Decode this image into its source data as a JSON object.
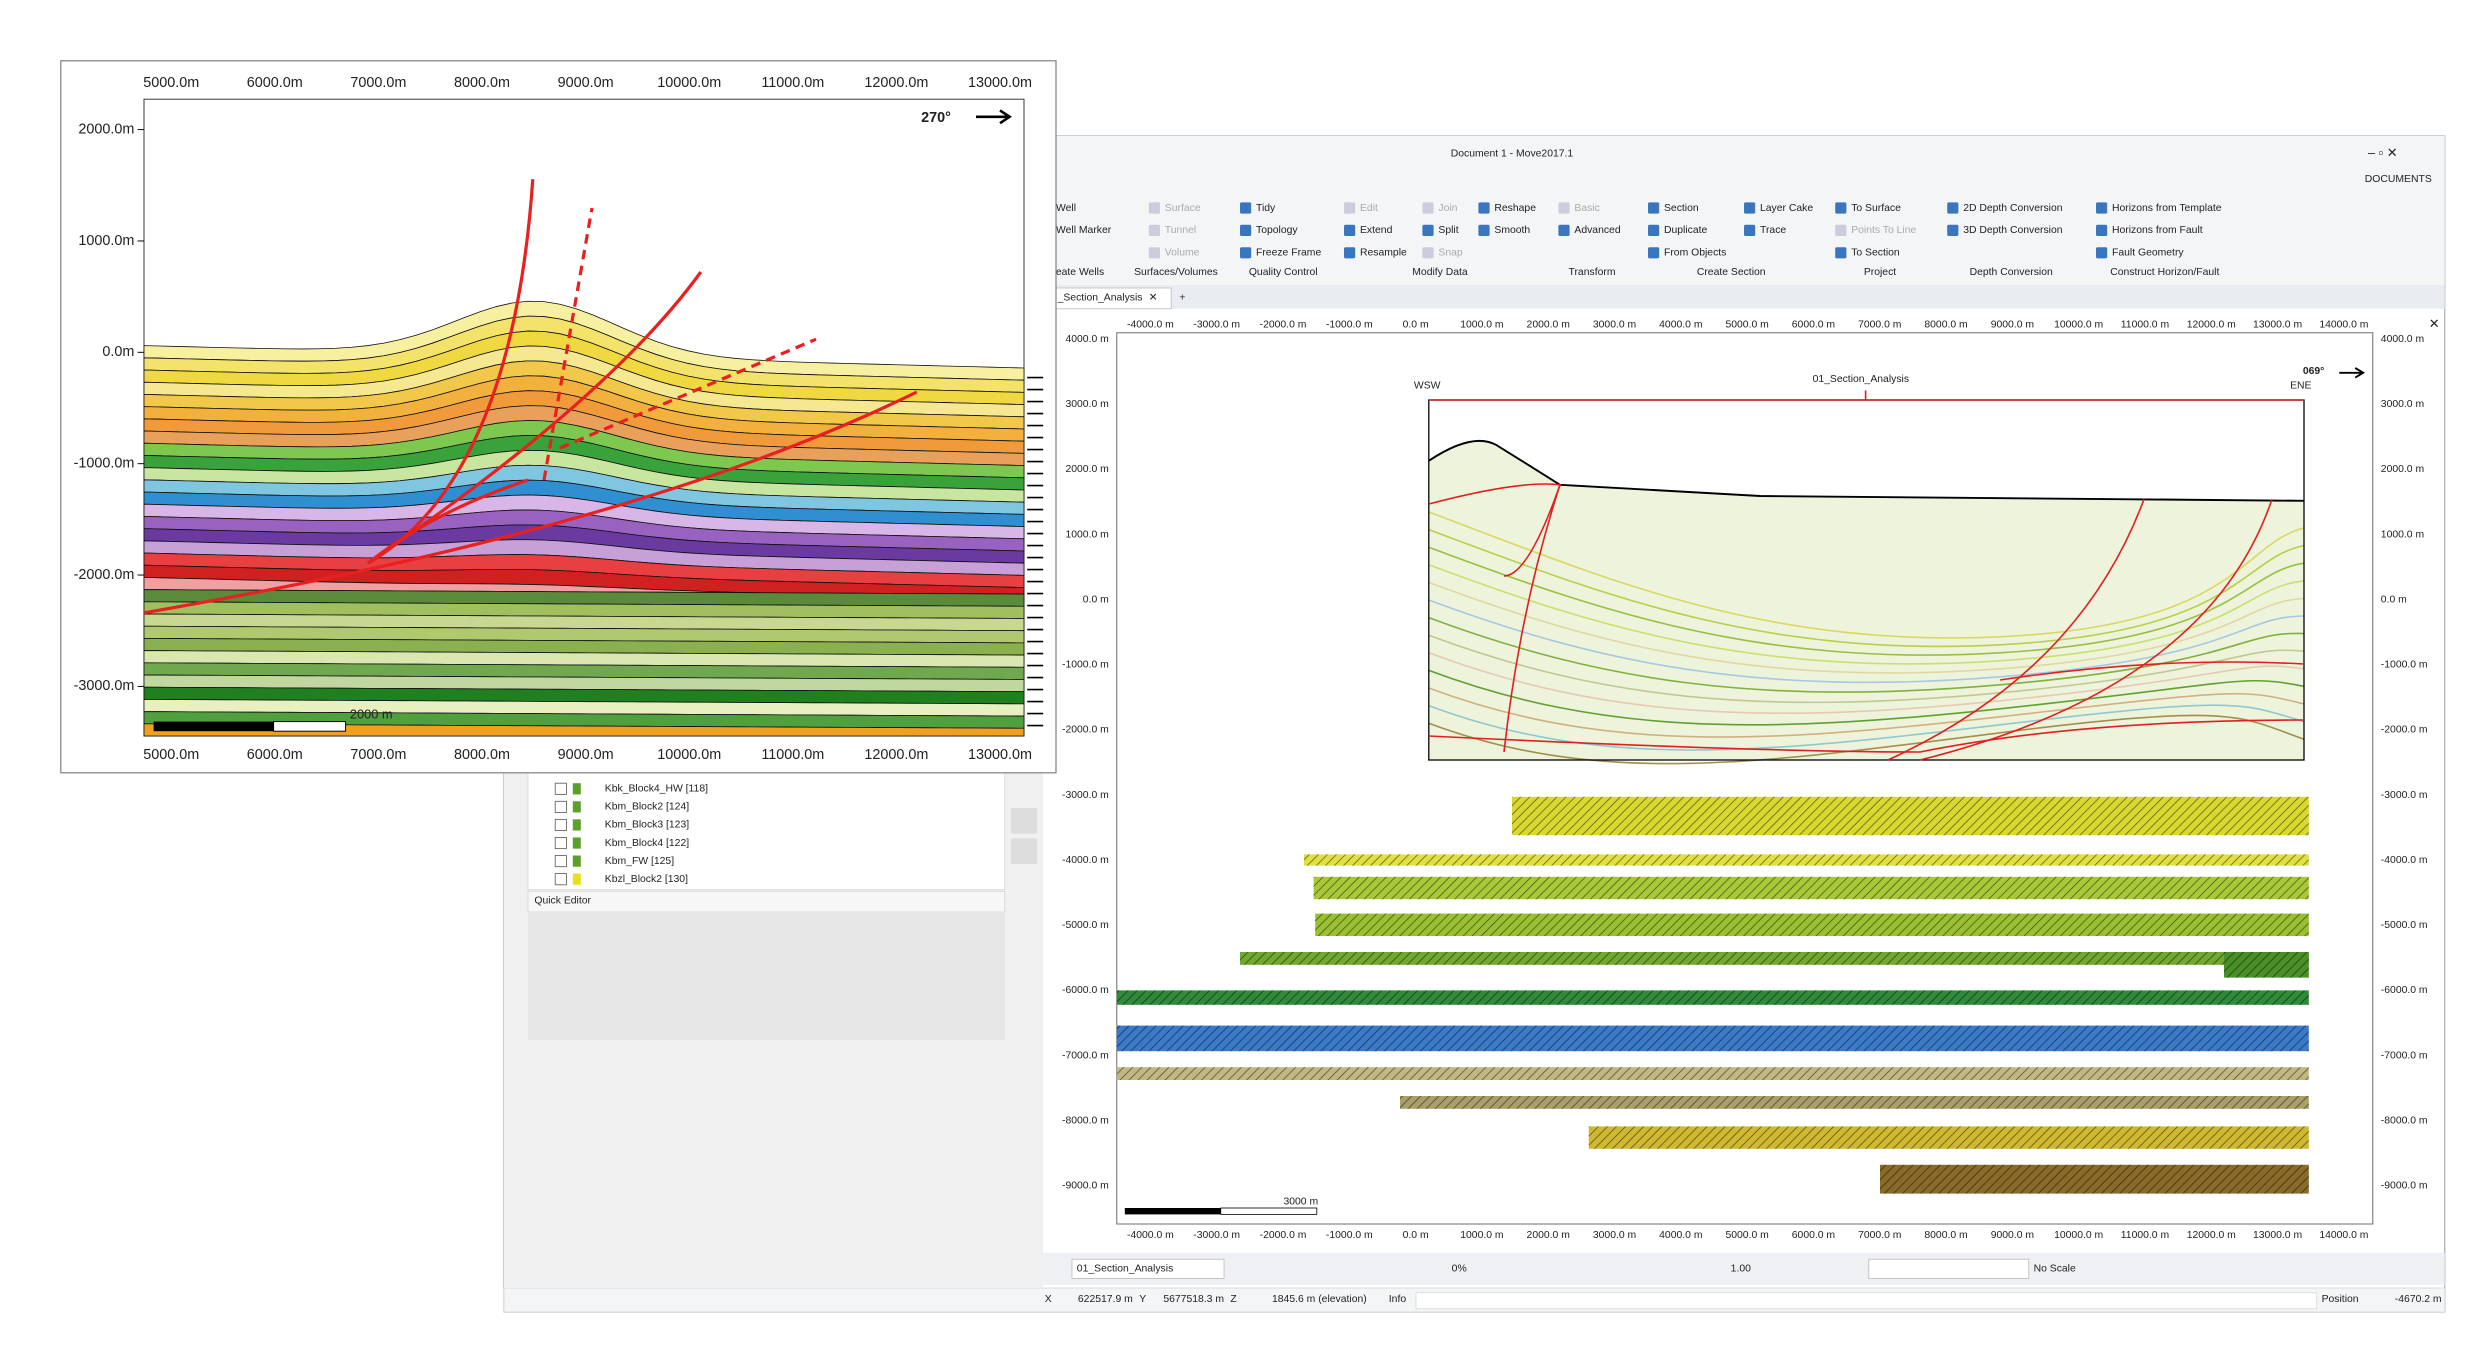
{
  "window": {
    "title": "Document 1 - Move2017.1",
    "documents": "DOCUMENTS"
  },
  "ribbon": [
    {
      "label": "eate Wells",
      "columns": [
        [
          "Well",
          "Well Marker"
        ]
      ]
    },
    {
      "label": "Surfaces/Volumes",
      "columns": [
        [
          "Surface",
          "Tunnel",
          "Volume"
        ]
      ]
    },
    {
      "label": "Quality Control",
      "columns": [
        [
          "Tidy",
          "Topology",
          "Freeze Frame"
        ]
      ]
    },
    {
      "label": "Modify Data",
      "columns": [
        [
          "Edit",
          "Extend",
          "Resample"
        ],
        [
          "Join",
          "Split",
          "Snap"
        ],
        [
          "Reshape",
          "Smooth"
        ]
      ]
    },
    {
      "label": "Transform",
      "columns": [
        [
          "Basic",
          "Advanced"
        ]
      ]
    },
    {
      "label": "Create Section",
      "columns": [
        [
          "Section",
          "Duplicate",
          "From Objects"
        ],
        [
          "Layer Cake",
          "Trace"
        ]
      ]
    },
    {
      "label": "Project",
      "columns": [
        [
          "To Surface",
          "Points To Line",
          "To Section"
        ]
      ]
    },
    {
      "label": "Depth Conversion",
      "columns": [
        [
          "2D Depth Conversion",
          "3D Depth Conversion"
        ]
      ]
    },
    {
      "label": "Construct Horizon/Fault",
      "columns": [
        [
          "Horizons from Template",
          "Horizons from Fault",
          "Fault Geometry"
        ]
      ]
    }
  ],
  "tabs": [
    "_Section_Analysis",
    "+"
  ],
  "layers": [
    "Kbk_Block4_HW [118]",
    "Kbm_Block2 [124]",
    "Kbm_Block3 [123]",
    "Kbm_Block4 [122]",
    "Kbm_FW [125]",
    "Kbzl_Block2 [130]"
  ],
  "quick_editor": "Quick Editor",
  "section": {
    "title": "01_Section_Analysis",
    "left": "WSW",
    "right": "ENE",
    "azimuth": "069°",
    "scale": "3000 m",
    "xticks": [
      "-4000.0 m",
      "-3000.0 m",
      "-2000.0 m",
      "-1000.0 m",
      "0.0 m",
      "1000.0 m",
      "2000.0 m",
      "3000.0 m",
      "4000.0 m",
      "5000.0 m",
      "6000.0 m",
      "7000.0 m",
      "8000.0 m",
      "9000.0 m",
      "10000.0 m",
      "11000.0 m",
      "12000.0 m",
      "13000.0 m",
      "14000.0 m"
    ],
    "yticks": [
      "4000.0 m",
      "3000.0 m",
      "2000.0 m",
      "1000.0 m",
      "0.0 m",
      "-1000.0 m",
      "-2000.0 m",
      "-3000.0 m",
      "-4000.0 m",
      "-5000.0 m",
      "-6000.0 m",
      "-7000.0 m",
      "-8000.0 m",
      "-9000.0 m"
    ]
  },
  "inset": {
    "azimuth": "270°",
    "scale": "2000 m",
    "xticks": [
      "5000.0m",
      "6000.0m",
      "7000.0m",
      "8000.0m",
      "9000.0m",
      "10000.0m",
      "11000.0m",
      "12000.0m",
      "13000.0m"
    ],
    "yticks": [
      "2000.0m",
      "1000.0m",
      "0.0m",
      "-1000.0m",
      "-2000.0m",
      "-3000.0m"
    ]
  },
  "toolbar": {
    "section": "01_Section_Analysis",
    "opacity": "0%",
    "zoom": "1.00",
    "scale": "No Scale"
  },
  "status": {
    "x_label": "X",
    "x": "622517.9 m",
    "y_label": "Y",
    "y": "5677518.3 m",
    "z_label": "Z",
    "z": "1845.6 m (elevation)",
    "info": "Info",
    "position_label": "Position",
    "position": "-4670.2 m"
  }
}
